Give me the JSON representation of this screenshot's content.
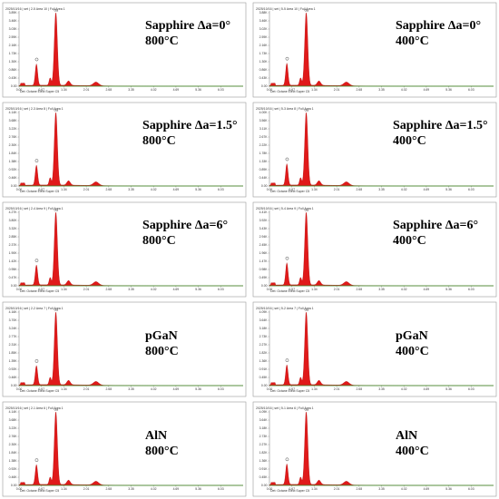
{
  "chart_data": [
    {
      "type": "area",
      "header": "2025/10/16 | set | 2-5 Area 10 | Full Area 1",
      "footer": "Det: Octane Elect Super C5",
      "label_lines": [
        "Sapphire Δa=0°",
        "800°C"
      ],
      "ymax_label": "3.89K",
      "ytick_labels": [
        "3.89K",
        "3.46K",
        "3.03K",
        "2.59K",
        "2.16K",
        "1.73K",
        "1.30K",
        "0.86K",
        "0.43K",
        "0.00"
      ],
      "xtick_labels": [
        "0.00",
        "0.67",
        "1.34",
        "2.01",
        "2.68",
        "3.35",
        "4.02",
        "4.69",
        "5.36",
        "6.03"
      ],
      "xlim": [
        0,
        6.7
      ],
      "peaks": [
        {
          "label": "O",
          "x": 0.52,
          "y": 0.29
        },
        {
          "label": "Ga",
          "x": 1.1,
          "y": 1.0
        }
      ]
    },
    {
      "type": "area",
      "header": "2025/10/16 | set | 5-5 Area 10 | Full Area 1",
      "footer": "Det: Octane Elect Super C5",
      "label_lines": [
        "Sapphire Δa=0°",
        "400°C"
      ],
      "ymax_label": "3.88K",
      "ytick_labels": [
        "3.88K",
        "3.46K",
        "3.02K",
        "2.59K",
        "2.16K",
        "1.73K",
        "1.30K",
        "0.86K",
        "0.43K",
        "0.00"
      ],
      "xtick_labels": [
        "0.00",
        "0.67",
        "1.34",
        "2.01",
        "2.68",
        "3.35",
        "4.02",
        "4.69",
        "5.36",
        "6.03"
      ],
      "xlim": [
        0,
        6.7
      ],
      "peaks": [
        {
          "label": "O",
          "x": 0.52,
          "y": 0.3
        },
        {
          "label": "Ga",
          "x": 1.1,
          "y": 1.0
        }
      ]
    },
    {
      "type": "area",
      "header": "2025/10/16 | set | 2-3 Area 8 | Full Area 1",
      "footer": "Det: Octane Elect Super C5",
      "label_lines": [
        "Sapphire Δa=1.5°",
        "800°C"
      ],
      "ymax_label": "4.14K",
      "ytick_labels": [
        "4.14K",
        "3.68K",
        "3.22K",
        "2.76K",
        "2.30K",
        "1.84K",
        "1.38K",
        "0.92K",
        "0.46K",
        "0.00"
      ],
      "xtick_labels": [
        "0.00",
        "0.67",
        "1.34",
        "2.01",
        "2.68",
        "3.35",
        "4.02",
        "4.69",
        "5.36",
        "6.03"
      ],
      "xlim": [
        0,
        6.7
      ],
      "peaks": [
        {
          "label": "O",
          "x": 0.52,
          "y": 0.27
        },
        {
          "label": "Ga",
          "x": 1.1,
          "y": 1.0
        }
      ]
    },
    {
      "type": "area",
      "header": "2025/10/16 | set | 5-3 Area 8 | Full Area 1",
      "footer": "Det: Octane Elect Super C5",
      "label_lines": [
        "Sapphire Δa=1.5°",
        "400°C"
      ],
      "ymax_label": "4.00K",
      "ytick_labels": [
        "4.00K",
        "3.56K",
        "3.11K",
        "2.67K",
        "2.22K",
        "1.78K",
        "1.33K",
        "0.89K",
        "0.44K",
        "0.00"
      ],
      "xtick_labels": [
        "0.00",
        "0.67",
        "1.34",
        "2.01",
        "2.68",
        "3.35",
        "4.02",
        "4.69",
        "5.36",
        "6.03"
      ],
      "xlim": [
        0,
        6.7
      ],
      "peaks": [
        {
          "label": "O",
          "x": 0.52,
          "y": 0.29
        },
        {
          "label": "Ga",
          "x": 1.1,
          "y": 1.0
        }
      ]
    },
    {
      "type": "area",
      "header": "2025/10/16 | set | 2-4 Area 9 | Full Area 1",
      "footer": "Det: Octane Elect Super C5",
      "label_lines": [
        "Sapphire Δa=6°",
        "800°C"
      ],
      "ymax_label": "4.27K",
      "ytick_labels": [
        "4.27K",
        "3.80K",
        "3.32K",
        "2.85K",
        "2.37K",
        "1.90K",
        "1.42K",
        "0.95K",
        "0.47K",
        "0.00"
      ],
      "xtick_labels": [
        "0.00",
        "0.67",
        "1.34",
        "2.01",
        "2.68",
        "3.35",
        "4.02",
        "4.69",
        "5.36",
        "6.03"
      ],
      "xlim": [
        0,
        6.7
      ],
      "peaks": [
        {
          "label": "O",
          "x": 0.52,
          "y": 0.27
        },
        {
          "label": "Ga",
          "x": 1.1,
          "y": 1.0
        }
      ]
    },
    {
      "type": "area",
      "header": "2025/10/16 | set | 5-4 Area 9 | Full Area 1",
      "footer": "Det: Octane Elect Super C5",
      "label_lines": [
        "Sapphire Δa=6°",
        "400°C"
      ],
      "ymax_label": "4.41K",
      "ytick_labels": [
        "4.41K",
        "3.92K",
        "3.43K",
        "2.94K",
        "2.45K",
        "1.96K",
        "1.47K",
        "0.98K",
        "0.49K",
        "0.00"
      ],
      "xtick_labels": [
        "0.00",
        "0.67",
        "1.34",
        "2.01",
        "2.68",
        "3.35",
        "4.02",
        "4.69",
        "5.36",
        "6.03"
      ],
      "xlim": [
        0,
        6.7
      ],
      "peaks": [
        {
          "label": "O",
          "x": 0.52,
          "y": 0.3
        },
        {
          "label": "Ga",
          "x": 1.1,
          "y": 1.0
        }
      ]
    },
    {
      "type": "area",
      "header": "2025/10/16 | set | 2-2 Area 7 | Full Area 1",
      "footer": "Det: Octane Elect Super C5",
      "label_lines": [
        "pGaN",
        "800°C"
      ],
      "ymax_label": "4.16K",
      "ytick_labels": [
        "4.16K",
        "3.70K",
        "3.24K",
        "2.77K",
        "2.31K",
        "1.85K",
        "1.39K",
        "0.92K",
        "0.46K",
        "0.00"
      ],
      "xtick_labels": [
        "0.00",
        "0.67",
        "1.34",
        "2.01",
        "2.68",
        "3.35",
        "4.02",
        "4.69",
        "5.36",
        "6.03"
      ],
      "xlim": [
        0,
        6.7
      ],
      "peaks": [
        {
          "label": "O",
          "x": 0.52,
          "y": 0.26
        },
        {
          "label": "Ga",
          "x": 1.1,
          "y": 1.0
        }
      ]
    },
    {
      "type": "area",
      "header": "2025/10/16 | set | 5-2 Area 7 | Full Area 1",
      "footer": "Det: Octane Elect Super C5",
      "label_lines": [
        "pGaN",
        "400°C"
      ],
      "ymax_label": "4.09K",
      "ytick_labels": [
        "4.09K",
        "3.64K",
        "3.18K",
        "2.73K",
        "2.27K",
        "1.82K",
        "1.36K",
        "0.91K",
        "0.45K",
        "0.00"
      ],
      "xtick_labels": [
        "0.00",
        "0.67",
        "1.34",
        "2.01",
        "2.68",
        "3.35",
        "4.02",
        "4.69",
        "5.36",
        "6.03"
      ],
      "xlim": [
        0,
        6.7
      ],
      "peaks": [
        {
          "label": "O",
          "x": 0.52,
          "y": 0.27
        },
        {
          "label": "Ga",
          "x": 1.1,
          "y": 1.0
        }
      ]
    },
    {
      "type": "area",
      "header": "2025/10/16 | set | 2-1 Area 6 | Full Area 1",
      "footer": "Det: Octane Elect Super C5",
      "label_lines": [
        "AlN",
        "800°C"
      ],
      "ymax_label": "4.14K",
      "ytick_labels": [
        "4.14K",
        "3.68K",
        "3.22K",
        "2.76K",
        "2.30K",
        "1.84K",
        "1.38K",
        "0.92K",
        "0.46K",
        "0.00"
      ],
      "xtick_labels": [
        "0.00",
        "0.67",
        "1.34",
        "2.01",
        "2.68",
        "3.35",
        "4.02",
        "4.69",
        "5.36",
        "6.03"
      ],
      "xlim": [
        0,
        6.7
      ],
      "peaks": [
        {
          "label": "O",
          "x": 0.52,
          "y": 0.27
        },
        {
          "label": "Ga",
          "x": 1.1,
          "y": 1.0
        }
      ]
    },
    {
      "type": "area",
      "header": "2025/10/16 | set | 5-1 Area 6 | Full Area 1",
      "footer": "Det: Octane Elect Super C5",
      "label_lines": [
        "AlN",
        "400°C"
      ],
      "ymax_label": "4.09K",
      "ytick_labels": [
        "4.09K",
        "3.64K",
        "3.18K",
        "2.73K",
        "2.27K",
        "1.82K",
        "1.36K",
        "0.91K",
        "0.45K",
        "0.00"
      ],
      "xtick_labels": [
        "0.00",
        "0.67",
        "1.34",
        "2.01",
        "2.68",
        "3.35",
        "4.02",
        "4.69",
        "5.36",
        "6.03"
      ],
      "xlim": [
        0,
        6.7
      ],
      "peaks": [
        {
          "label": "O",
          "x": 0.52,
          "y": 0.28
        },
        {
          "label": "Ga",
          "x": 1.1,
          "y": 1.0
        }
      ]
    }
  ],
  "colors": {
    "spectrum_fill": "#e01a1a",
    "spectrum_edge": "#b00000",
    "baseline": "#2e9a2e",
    "frame": "#9a9a9a"
  }
}
